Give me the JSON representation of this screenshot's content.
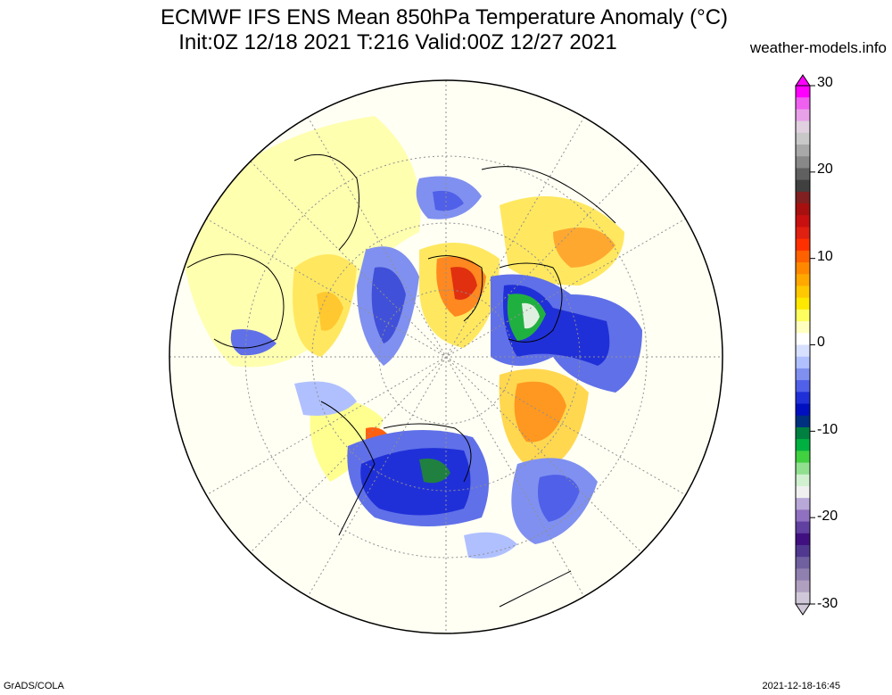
{
  "header": {
    "title_line1": "ECMWF IFS ENS Mean 850hPa Temperature Anomaly (°C)",
    "title_line2": "Init:0Z 12/18 2021  T:216 Valid:00Z 12/27 2021",
    "site": "weather-models.info"
  },
  "footer": {
    "left": "GrADS/COLA",
    "right": "2021-12-18-16:45"
  },
  "colorbar": {
    "labels": [
      "30",
      "20",
      "10",
      "0",
      "-10",
      "-20",
      "-30"
    ],
    "colors": [
      "#ff00ff",
      "#f060f0",
      "#e8a0e8",
      "#e0d0e0",
      "#c8c8c8",
      "#a8a8a8",
      "#888888",
      "#606060",
      "#404040",
      "#802020",
      "#a81010",
      "#c81010",
      "#e02010",
      "#ff3000",
      "#ff6000",
      "#ff8800",
      "#ffa800",
      "#ffc800",
      "#ffe800",
      "#ffff60",
      "#ffffc0",
      "#ffffff",
      "#d8e0ff",
      "#b0c0ff",
      "#8090f0",
      "#5060e8",
      "#2030d8",
      "#0010c0",
      "#003080",
      "#008040",
      "#00b040",
      "#40d040",
      "#90e090",
      "#d0f0d0",
      "#f0f0f0",
      "#b8a8d8",
      "#9070c0",
      "#6040a0",
      "#401080",
      "#503890",
      "#7060a0",
      "#9080b0",
      "#b0a0c0",
      "#d0c8d8"
    ]
  }
}
